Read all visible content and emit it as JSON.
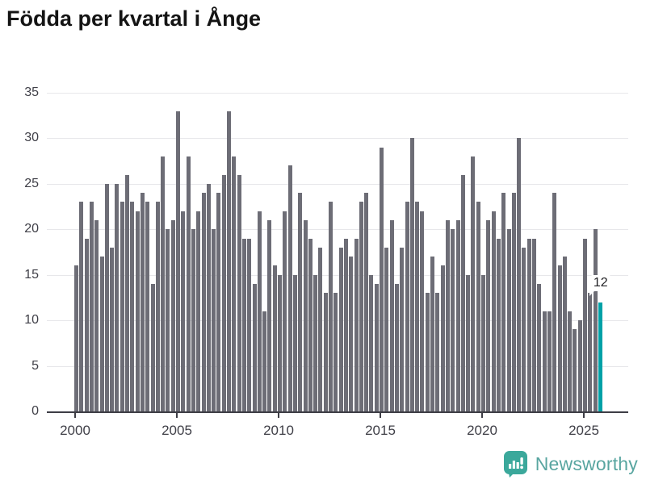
{
  "header": {
    "title": "Födda per kvartal i Ånge"
  },
  "annotation": {
    "last_value_label": "12"
  },
  "branding": {
    "name": "Newsworthy",
    "icon": "bar-chart-speech-bubble-icon",
    "icon_color": "#3ba89b",
    "text_color": "#58a5a0"
  },
  "colors": {
    "bar": "#6d6d76",
    "highlight": "#00a1a7",
    "gridline": "#e7e7ea",
    "axis": "#3d3d45",
    "axis_text": "#3f3f47"
  },
  "chart_data": {
    "type": "bar",
    "title": "Födda per kvartal i Ånge",
    "xlabel": "",
    "ylabel": "",
    "ylim": [
      0,
      35
    ],
    "grid": "horizontal",
    "y_tick_labels": [
      "0",
      "5",
      "10",
      "15",
      "20",
      "25",
      "30",
      "35"
    ],
    "x_tick_labels": [
      "2000",
      "2005",
      "2010",
      "2015",
      "2020",
      "2025"
    ],
    "legend": "none",
    "highlight": {
      "position": "last",
      "value": 12,
      "label": "12"
    },
    "series_by_year": [
      {
        "year": 2000,
        "q": [
          16,
          23,
          19,
          23
        ]
      },
      {
        "year": 2001,
        "q": [
          21,
          17,
          25,
          18
        ]
      },
      {
        "year": 2002,
        "q": [
          25,
          23,
          26,
          23
        ]
      },
      {
        "year": 2003,
        "q": [
          22,
          24,
          23,
          14
        ]
      },
      {
        "year": 2004,
        "q": [
          23,
          28,
          20,
          21
        ]
      },
      {
        "year": 2005,
        "q": [
          33,
          22,
          28,
          20
        ]
      },
      {
        "year": 2006,
        "q": [
          22,
          24,
          25,
          20
        ]
      },
      {
        "year": 2007,
        "q": [
          24,
          26,
          33,
          28
        ]
      },
      {
        "year": 2008,
        "q": [
          26,
          19,
          19,
          14
        ]
      },
      {
        "year": 2009,
        "q": [
          22,
          11,
          21,
          16
        ]
      },
      {
        "year": 2010,
        "q": [
          15,
          22,
          27,
          15
        ]
      },
      {
        "year": 2011,
        "q": [
          24,
          21,
          19,
          15
        ]
      },
      {
        "year": 2012,
        "q": [
          18,
          13,
          23,
          13
        ]
      },
      {
        "year": 2013,
        "q": [
          18,
          19,
          17,
          19
        ]
      },
      {
        "year": 2014,
        "q": [
          23,
          24,
          15,
          14
        ]
      },
      {
        "year": 2015,
        "q": [
          29,
          18,
          21,
          14
        ]
      },
      {
        "year": 2016,
        "q": [
          18,
          23,
          30,
          23
        ]
      },
      {
        "year": 2017,
        "q": [
          22,
          13,
          17,
          13
        ]
      },
      {
        "year": 2018,
        "q": [
          16,
          21,
          20,
          21
        ]
      },
      {
        "year": 2019,
        "q": [
          26,
          15,
          28,
          23
        ]
      },
      {
        "year": 2020,
        "q": [
          15,
          21,
          22,
          19
        ]
      },
      {
        "year": 2021,
        "q": [
          24,
          20,
          24,
          30
        ]
      },
      {
        "year": 2022,
        "q": [
          18,
          19,
          19,
          14
        ]
      },
      {
        "year": 2023,
        "q": [
          11,
          11,
          24,
          16
        ]
      },
      {
        "year": 2024,
        "q": [
          17,
          11,
          9,
          10
        ]
      },
      {
        "year": 2025,
        "q": [
          19,
          13,
          20,
          12
        ]
      }
    ]
  }
}
